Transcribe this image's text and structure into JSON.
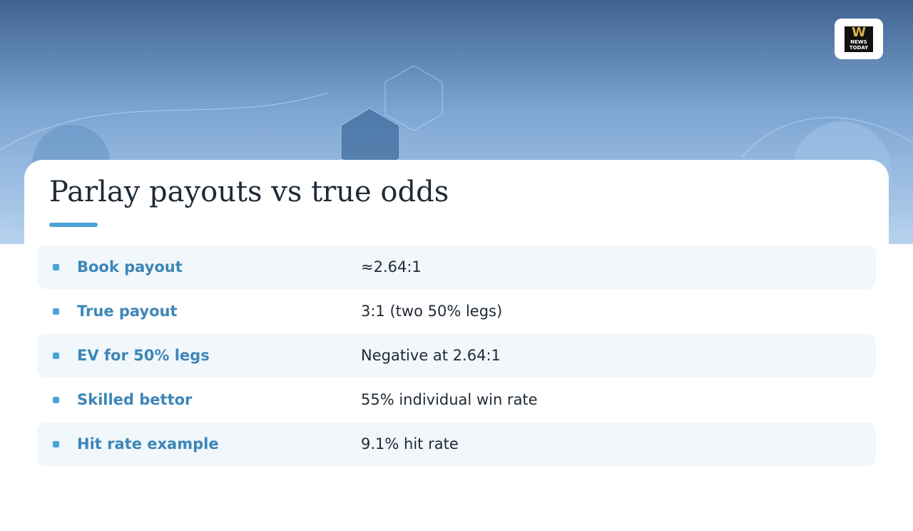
{
  "header": {
    "title": "Parlay payouts vs true odds",
    "logo": {
      "line1": "W",
      "line2": "NEWS",
      "line3": "TODAY"
    }
  },
  "table": {
    "rows": [
      [
        "Book payout",
        "≈2.64:1"
      ],
      [
        "True payout",
        "3:1 (two 50% legs)"
      ],
      [
        "EV for 50% legs",
        "Negative at 2.64:1"
      ],
      [
        "Skilled bettor",
        "55% individual win rate"
      ],
      [
        "Hit rate example",
        "9.1% hit rate"
      ]
    ]
  }
}
